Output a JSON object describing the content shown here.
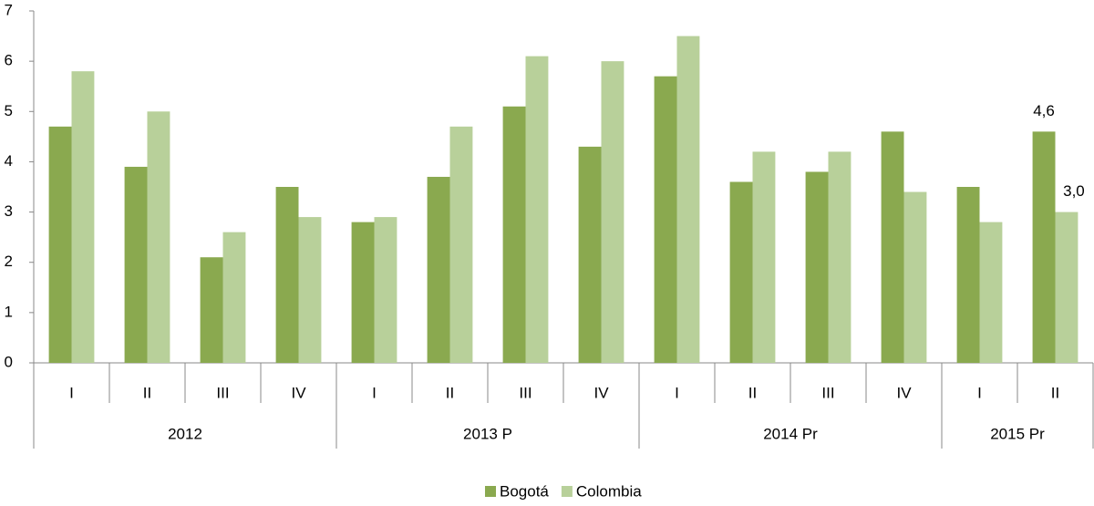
{
  "chart_data": {
    "type": "bar",
    "groups": [
      {
        "name": "2012",
        "categories": [
          "I",
          "II",
          "III",
          "IV"
        ]
      },
      {
        "name": "2013 P",
        "categories": [
          "I",
          "II",
          "III",
          "IV"
        ]
      },
      {
        "name": "2014 Pr",
        "categories": [
          "I",
          "II",
          "III",
          "IV"
        ]
      },
      {
        "name": "2015 Pr",
        "categories": [
          "I",
          "II"
        ]
      }
    ],
    "series": [
      {
        "name": "Bogotá",
        "color": "#8aa94f",
        "values": [
          4.7,
          3.9,
          2.1,
          3.5,
          2.8,
          3.7,
          5.1,
          4.3,
          5.7,
          3.6,
          3.8,
          4.6,
          3.5,
          4.6
        ],
        "value_labels": [
          null,
          null,
          null,
          null,
          null,
          null,
          null,
          null,
          null,
          null,
          null,
          null,
          null,
          "4,6"
        ]
      },
      {
        "name": "Colombia",
        "color": "#b8d09a",
        "values": [
          5.8,
          5.0,
          2.6,
          2.9,
          2.9,
          4.7,
          6.1,
          6.0,
          6.5,
          4.2,
          4.2,
          3.4,
          2.8,
          3.0
        ],
        "value_labels": [
          null,
          null,
          null,
          null,
          null,
          null,
          null,
          null,
          null,
          null,
          null,
          null,
          null,
          "3,0"
        ]
      }
    ],
    "ylim": [
      0,
      7
    ],
    "yticks": [
      0,
      1,
      2,
      3,
      4,
      5,
      6,
      7
    ],
    "grid": false,
    "legend": "bottom"
  }
}
